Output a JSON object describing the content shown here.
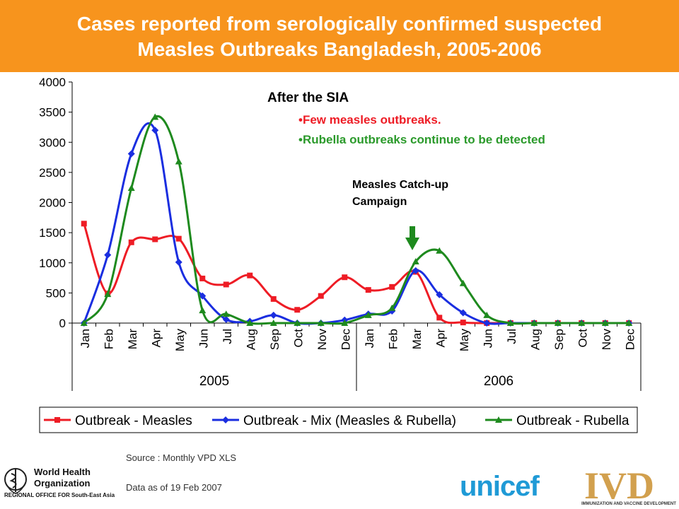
{
  "header": {
    "title_line1": "Cases reported from serologically confirmed suspected",
    "title_line2": "Measles Outbreaks Bangladesh, 2005-2006"
  },
  "annotations": {
    "sia_heading": "After the SIA",
    "sia_bullet1": "•Few measles outbreaks.",
    "sia_bullet2": "•Rubella outbreaks continue to be detected",
    "campaign_line1": "Measles Catch-up",
    "campaign_line2": "Campaign"
  },
  "footer": {
    "source": "Source : Monthly VPD XLS",
    "as_of": "Data as of 19 Feb 2007",
    "who_line1": "World Health",
    "who_line2": "Organization",
    "who_line3": "REGIONAL OFFICE FOR South-East Asia",
    "unicef": "unicef",
    "ivd": "IVD",
    "ivd_sub": "IMMUNIZATION AND VACCINE DEVELOPMENT"
  },
  "colors": {
    "header": "#f7941d",
    "measles": "#ee1c25",
    "mix": "#1a2ee0",
    "rubella": "#1e8a1e",
    "arrow": "#1e8a1e"
  },
  "chart_data": {
    "type": "line",
    "categories": [
      "Jan",
      "Feb",
      "Mar",
      "Apr",
      "May",
      "Jun",
      "Jul",
      "Aug",
      "Sep",
      "Oct",
      "Nov",
      "Dec",
      "Jan",
      "Feb",
      "Mar",
      "Apr",
      "May",
      "Jun",
      "Jul",
      "Aug",
      "Sep",
      "Oct",
      "Nov",
      "Dec"
    ],
    "groups": [
      {
        "label": "2005",
        "start": 0,
        "end": 11
      },
      {
        "label": "2006",
        "start": 12,
        "end": 23
      }
    ],
    "ylim": [
      0,
      4000
    ],
    "yticks": [
      0,
      500,
      1000,
      1500,
      2000,
      2500,
      3000,
      3500,
      4000
    ],
    "grid": false,
    "legend": "bottom",
    "series": [
      {
        "name": "Outbreak - Measles",
        "marker": "square",
        "color": "#ee1c25",
        "values": [
          1650,
          490,
          1340,
          1390,
          1400,
          740,
          640,
          790,
          400,
          220,
          450,
          760,
          550,
          600,
          850,
          90,
          10,
          0,
          0,
          0,
          0,
          0,
          0,
          0
        ]
      },
      {
        "name": "Outbreak - Mix (Measles & Rubella)",
        "marker": "diamond",
        "color": "#1a2ee0",
        "values": [
          0,
          1130,
          2810,
          3200,
          1010,
          450,
          60,
          30,
          130,
          0,
          0,
          50,
          150,
          200,
          870,
          470,
          170,
          0,
          0,
          0,
          0,
          0,
          0,
          0
        ]
      },
      {
        "name": "Outbreak - Rubella",
        "marker": "triangle",
        "color": "#1e8a1e",
        "values": [
          0,
          480,
          2240,
          3420,
          2680,
          210,
          150,
          0,
          0,
          0,
          0,
          0,
          130,
          250,
          1020,
          1200,
          660,
          130,
          0,
          0,
          0,
          0,
          0,
          0
        ]
      }
    ]
  }
}
